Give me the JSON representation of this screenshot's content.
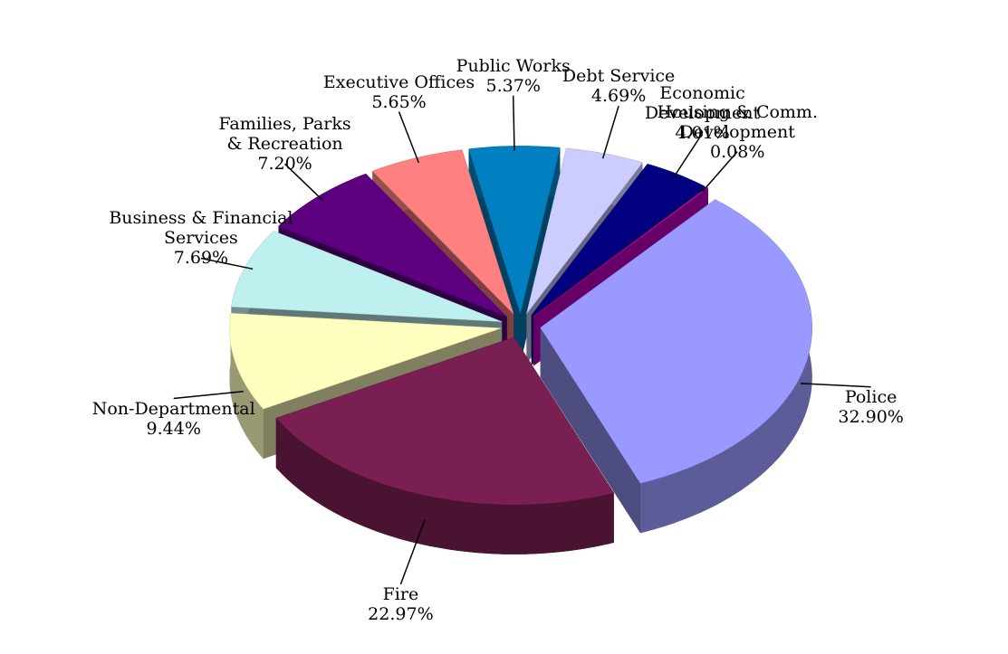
{
  "chart_data": {
    "type": "pie",
    "categories": [
      "Police",
      "Fire",
      "Non-Departmental",
      "Business & Financial\nServices",
      "Families, Parks\n& Recreation",
      "Executive Offices",
      "Public Works",
      "Debt Service",
      "Economic\nDevelopment",
      "Housing & Comm.\nDevelopment"
    ],
    "values": [
      32.9,
      22.97,
      9.44,
      7.69,
      7.2,
      5.65,
      5.37,
      4.69,
      4.01,
      0.08
    ],
    "value_labels": [
      "32.90%",
      "22.97%",
      "9.44%",
      "7.69%",
      "7.20%",
      "5.65%",
      "5.37%",
      "4.69%",
      "4.01%",
      "0.08%"
    ],
    "colors": [
      "#9999ff",
      "#7a1f52",
      "#ffffc0",
      "#bff0f0",
      "#5c0080",
      "#ff8080",
      "#0080c0",
      "#ccccff",
      "#000080",
      "#cc00cc"
    ]
  }
}
